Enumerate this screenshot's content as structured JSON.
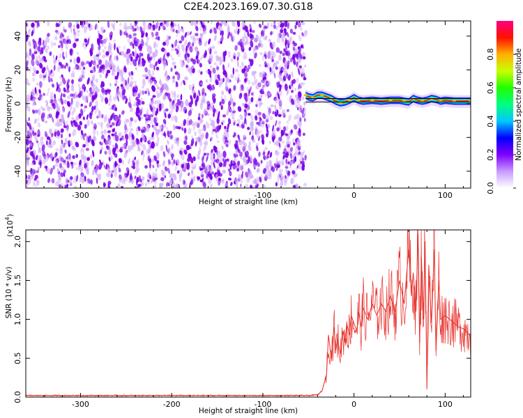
{
  "title": "C2E4.2023.169.07.30.G18",
  "colors": {
    "snr_line": "#e8302a",
    "noise": "#7a00e6",
    "noise_light": "#cfa6f7"
  },
  "chart_data": [
    {
      "type": "heatmap",
      "xlabel": "Height of straight line (km)",
      "ylabel": "Frequency (Hz)",
      "xlim": [
        -360,
        128
      ],
      "ylim": [
        -50,
        49
      ],
      "xticks": [
        {
          "value": -300,
          "label": "-300"
        },
        {
          "value": -200,
          "label": "-200"
        },
        {
          "value": -100,
          "label": "-100"
        },
        {
          "value": 0,
          "label": "0"
        },
        {
          "value": 100,
          "label": "100"
        }
      ],
      "yticks": [
        {
          "value": -40,
          "label": "-40"
        },
        {
          "value": -20,
          "label": "-20"
        },
        {
          "value": 0,
          "label": "0"
        },
        {
          "value": 20,
          "label": "20"
        },
        {
          "value": 40,
          "label": "40"
        }
      ],
      "noise_region_x": [
        -360,
        -53
      ],
      "signal_region_x": [
        -53,
        128
      ],
      "signal_band_hz": [
        1,
        3
      ],
      "ridge_frequency": {
        "x": [
          -53,
          -50,
          -45,
          -40,
          -35,
          -30,
          -25,
          -20,
          -15,
          -10,
          -5,
          0,
          5,
          10,
          20,
          30,
          40,
          50,
          55,
          60,
          65,
          70,
          75,
          80,
          85,
          90,
          95,
          100,
          110,
          120,
          128
        ],
        "y": [
          5,
          4,
          3.5,
          5,
          5,
          4,
          3,
          1.5,
          0.5,
          1,
          2,
          3.5,
          2,
          1.5,
          2,
          1.5,
          2,
          2,
          1.5,
          1,
          3,
          2,
          1.5,
          2,
          3,
          2.5,
          1.5,
          2,
          1.5,
          1.5,
          1.5
        ]
      },
      "colorbar": {
        "label": "Normalized spectral amplitude",
        "range": [
          0,
          1
        ],
        "ticks": [
          {
            "value": 0,
            "label": "0.0"
          },
          {
            "value": 0.2,
            "label": "0.2"
          },
          {
            "value": 0.4,
            "label": "0.4"
          },
          {
            "value": 0.6,
            "label": "0.6"
          },
          {
            "value": 0.8,
            "label": "0.8"
          }
        ],
        "colors": [
          "#ffffff",
          "#c89bff",
          "#8000ff",
          "#0000ff",
          "#00c8ff",
          "#00ff80",
          "#20ff00",
          "#c8ff00",
          "#ffb000",
          "#ff1000",
          "#ff0080"
        ]
      }
    },
    {
      "type": "line",
      "xlabel": "Height of straight line (km)",
      "ylabel": "SNR (10 * v/v)",
      "yscale_base": "10",
      "yscale_exp": "4",
      "xlim": [
        -360,
        128
      ],
      "ylim": [
        0,
        2.15
      ],
      "xticks": [
        {
          "value": -300,
          "label": "-300"
        },
        {
          "value": -200,
          "label": "-200"
        },
        {
          "value": -100,
          "label": "-100"
        },
        {
          "value": 0,
          "label": "0"
        },
        {
          "value": 100,
          "label": "100"
        }
      ],
      "yticks": [
        {
          "value": 0,
          "label": "0.0"
        },
        {
          "value": 0.5,
          "label": "0.5"
        },
        {
          "value": 1.0,
          "label": "1.0"
        },
        {
          "value": 1.5,
          "label": "1.5"
        },
        {
          "value": 2.0,
          "label": "2.0"
        }
      ],
      "series": [
        {
          "x": [
            -360,
            -300,
            -200,
            -100,
            -50,
            -40,
            -35,
            -30,
            -28,
            -25,
            -22,
            -20,
            -18,
            -15,
            -12,
            -10,
            -8,
            -5,
            -3,
            0,
            3,
            5,
            8,
            10,
            15,
            20,
            25,
            30,
            35,
            40,
            45,
            50,
            55,
            60,
            63,
            65,
            68,
            70,
            72,
            74,
            76,
            78,
            80,
            82,
            85,
            88,
            90,
            93,
            95,
            100,
            105,
            110,
            115,
            120,
            125,
            128
          ],
          "y": [
            0.02,
            0.02,
            0.02,
            0.02,
            0.02,
            0.03,
            0.08,
            0.3,
            0.8,
            0.5,
            0.9,
            0.6,
            0.75,
            0.55,
            0.85,
            0.7,
            0.95,
            0.8,
            1.05,
            0.95,
            0.85,
            1.1,
            0.9,
            1.15,
            1.0,
            1.2,
            1.05,
            1.2,
            1.1,
            1.3,
            1.1,
            1.5,
            1.2,
            1.9,
            1.3,
            1.6,
            1.1,
            2.1,
            0.7,
            1.8,
            1.0,
            2.0,
            0.1,
            1.7,
            0.95,
            1.9,
            0.6,
            1.5,
            1.0,
            1.05,
            1.0,
            0.95,
            0.9,
            0.88,
            0.82,
            0.78
          ]
        }
      ]
    }
  ]
}
